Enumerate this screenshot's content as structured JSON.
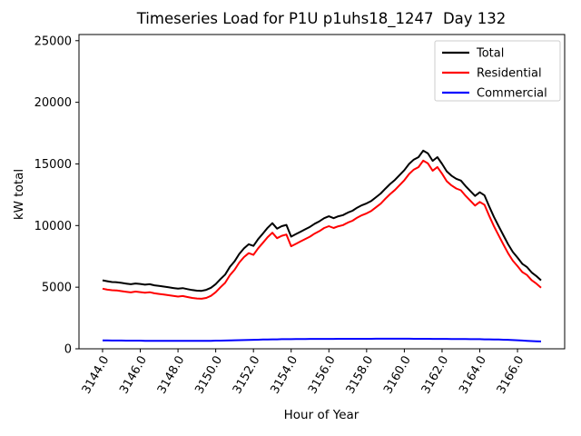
{
  "chart_data": {
    "type": "line",
    "title": "Timeseries Load for P1U p1uhs18_1247  Day 132",
    "xlabel": "Hour of Year",
    "ylabel": "kW total",
    "xlim": [
      3142.75,
      3168.5
    ],
    "ylim": [
      0,
      25500
    ],
    "grid": false,
    "legend_position": "upper right",
    "xticks": [
      3144,
      3146,
      3148,
      3150,
      3152,
      3154,
      3156,
      3158,
      3160,
      3162,
      3164,
      3166
    ],
    "xtick_labels": [
      "3144.0",
      "3146.0",
      "3148.0",
      "3150.0",
      "3152.0",
      "3154.0",
      "3156.0",
      "3158.0",
      "3160.0",
      "3162.0",
      "3164.0",
      "3166.0"
    ],
    "xtick_rotation_deg": 60,
    "yticks": [
      0,
      5000,
      10000,
      15000,
      20000,
      25000
    ],
    "ytick_labels": [
      "0",
      "5000",
      "10000",
      "15000",
      "20000",
      "25000"
    ],
    "x": [
      3144.0,
      3144.25,
      3144.5,
      3144.75,
      3145.0,
      3145.25,
      3145.5,
      3145.75,
      3146.0,
      3146.25,
      3146.5,
      3146.75,
      3147.0,
      3147.25,
      3147.5,
      3147.75,
      3148.0,
      3148.25,
      3148.5,
      3148.75,
      3149.0,
      3149.25,
      3149.5,
      3149.75,
      3150.0,
      3150.25,
      3150.5,
      3150.75,
      3151.0,
      3151.25,
      3151.5,
      3151.75,
      3152.0,
      3152.25,
      3152.5,
      3152.75,
      3153.0,
      3153.25,
      3153.5,
      3153.75,
      3154.0,
      3154.25,
      3154.5,
      3154.75,
      3155.0,
      3155.25,
      3155.5,
      3155.75,
      3156.0,
      3156.25,
      3156.5,
      3156.75,
      3157.0,
      3157.25,
      3157.5,
      3157.75,
      3158.0,
      3158.25,
      3158.5,
      3158.75,
      3159.0,
      3159.25,
      3159.5,
      3159.75,
      3160.0,
      3160.25,
      3160.5,
      3160.75,
      3161.0,
      3161.25,
      3161.5,
      3161.75,
      3162.0,
      3162.25,
      3162.5,
      3162.75,
      3163.0,
      3163.25,
      3163.5,
      3163.75,
      3164.0,
      3164.25,
      3164.5,
      3164.75,
      3165.0,
      3165.25,
      3165.5,
      3165.75,
      3166.0,
      3166.25,
      3166.5,
      3166.75,
      3167.0,
      3167.25
    ],
    "series": [
      {
        "name": "Total",
        "color": "#000000",
        "values": [
          5560,
          5480,
          5420,
          5400,
          5350,
          5290,
          5240,
          5300,
          5260,
          5200,
          5240,
          5150,
          5100,
          5050,
          4990,
          4930,
          4880,
          4920,
          4840,
          4770,
          4720,
          4700,
          4780,
          4950,
          5250,
          5650,
          6020,
          6650,
          7100,
          7700,
          8150,
          8480,
          8350,
          8900,
          9350,
          9820,
          10190,
          9750,
          9950,
          10050,
          9100,
          9300,
          9500,
          9700,
          9900,
          10150,
          10350,
          10600,
          10750,
          10600,
          10750,
          10850,
          11050,
          11200,
          11450,
          11650,
          11800,
          12000,
          12300,
          12600,
          13000,
          13380,
          13700,
          14100,
          14500,
          15000,
          15350,
          15550,
          16080,
          15850,
          15250,
          15550,
          15000,
          14400,
          14050,
          13800,
          13650,
          13200,
          12800,
          12400,
          12700,
          12450,
          11550,
          10700,
          9950,
          9210,
          8480,
          7860,
          7400,
          6900,
          6640,
          6200,
          5900,
          5560
        ]
      },
      {
        "name": "Residential",
        "color": "#ff0000",
        "values": [
          4880,
          4800,
          4750,
          4730,
          4680,
          4630,
          4580,
          4640,
          4600,
          4550,
          4590,
          4500,
          4450,
          4410,
          4350,
          4290,
          4240,
          4280,
          4200,
          4130,
          4080,
          4060,
          4130,
          4300,
          4590,
          4990,
          5350,
          5970,
          6410,
          7000,
          7440,
          7760,
          7620,
          8160,
          8600,
          9060,
          9420,
          8980,
          9170,
          9270,
          8320,
          8510,
          8710,
          8910,
          9100,
          9350,
          9550,
          9800,
          9950,
          9800,
          9940,
          10040,
          10240,
          10390,
          10640,
          10840,
          10990,
          11190,
          11480,
          11780,
          12180,
          12560,
          12880,
          13280,
          13680,
          14180,
          14540,
          14740,
          15270,
          15040,
          14450,
          14750,
          14200,
          13600,
          13260,
          13010,
          12860,
          12410,
          12020,
          11620,
          11920,
          11680,
          10780,
          9940,
          9200,
          8470,
          7750,
          7150,
          6710,
          6230,
          5990,
          5570,
          5290,
          4960
        ]
      },
      {
        "name": "Commercial",
        "color": "#0000ff",
        "values": [
          680,
          680,
          670,
          670,
          670,
          660,
          660,
          660,
          660,
          650,
          650,
          650,
          650,
          640,
          640,
          640,
          640,
          640,
          640,
          640,
          640,
          640,
          650,
          650,
          660,
          660,
          670,
          680,
          690,
          700,
          710,
          720,
          730,
          740,
          750,
          760,
          770,
          770,
          780,
          780,
          780,
          790,
          790,
          790,
          800,
          800,
          800,
          800,
          800,
          800,
          810,
          810,
          810,
          810,
          810,
          810,
          810,
          810,
          820,
          820,
          820,
          820,
          820,
          820,
          820,
          820,
          810,
          810,
          810,
          810,
          800,
          800,
          800,
          800,
          790,
          790,
          790,
          790,
          780,
          780,
          780,
          770,
          770,
          760,
          750,
          740,
          730,
          710,
          690,
          670,
          650,
          630,
          610,
          600
        ]
      }
    ]
  }
}
